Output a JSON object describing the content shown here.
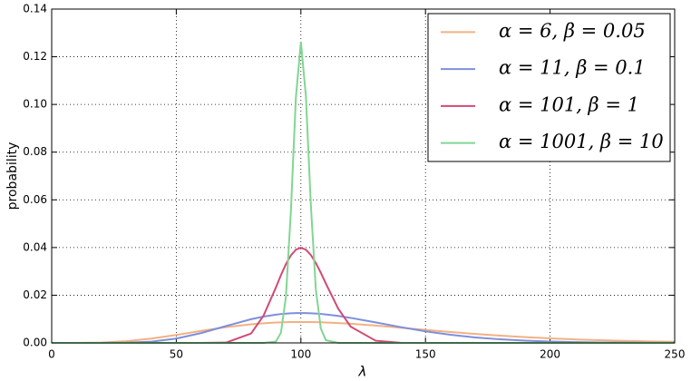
{
  "chart_data": {
    "type": "line",
    "xlabel": "λ",
    "ylabel": "probability",
    "x": [
      0,
      10,
      20,
      30,
      40,
      50,
      60,
      70,
      80,
      85,
      90,
      92,
      94,
      96,
      98,
      100,
      102,
      104,
      106,
      108,
      110,
      115,
      120,
      130,
      140,
      150,
      160,
      170,
      180,
      190,
      200,
      210,
      220,
      230,
      240,
      250
    ],
    "series": [
      {
        "name": "α = 6, β = 0.05",
        "color": "#f2b183",
        "values": [
          0,
          7.9e-06,
          0.000153,
          0.000706,
          0.0018,
          0.00334,
          0.00504,
          0.00661,
          0.00781,
          0.00824,
          0.00854,
          0.00863,
          0.00869,
          0.00874,
          0.00876,
          0.00877,
          0.00877,
          0.00874,
          0.0087,
          0.00864,
          0.00857,
          0.00834,
          0.00803,
          0.00727,
          0.00639,
          0.00547,
          0.00458,
          0.00376,
          0.00304,
          0.00241,
          0.00189,
          0.00146,
          0.00112,
          0.00085,
          0.00064,
          0.00047
        ]
      },
      {
        "name": "α = 11, β = 0.1",
        "color": "#7d8fdc",
        "values": [
          0,
          0,
          3.8e-06,
          8.1e-05,
          0.00053,
          0.00181,
          0.00413,
          0.00709,
          0.00993,
          0.01104,
          0.01186,
          0.0121,
          0.01228,
          0.01242,
          0.01249,
          0.01251,
          0.01249,
          0.01242,
          0.01231,
          0.01215,
          0.01194,
          0.0113,
          0.01048,
          0.00859,
          0.00663,
          0.00486,
          0.00341,
          0.0023,
          0.0015,
          0.00095,
          0.00058,
          0.00035,
          0.0002,
          0.00012,
          6.6e-05,
          3.7e-05
        ]
      },
      {
        "name": "α = 101, β = 1",
        "color": "#d24a75",
        "values": [
          0,
          0,
          0,
          0,
          0,
          0,
          6e-07,
          0.000138,
          0.00394,
          0.0114,
          0.02332,
          0.02843,
          0.03306,
          0.03674,
          0.03909,
          0.0399,
          0.03912,
          0.03688,
          0.03354,
          0.02942,
          0.02494,
          0.01432,
          0.0068,
          0.000925,
          6.9e-05,
          3e-06,
          0,
          0,
          0,
          0,
          0,
          0,
          0,
          0,
          0,
          0
        ]
      },
      {
        "name": "α = 1001, β = 10",
        "color": "#82d593",
        "values": [
          0,
          0,
          0,
          0,
          0,
          0,
          0,
          0,
          0,
          4.6e-07,
          0.00059,
          0.0043,
          0.0194,
          0.0555,
          0.103,
          0.1262,
          0.1036,
          0.0579,
          0.0224,
          0.00605,
          0.00116,
          1e-05,
          0,
          0,
          0,
          0,
          0,
          0,
          0,
          0,
          0,
          0,
          0,
          0,
          0,
          0
        ]
      }
    ],
    "xlim": [
      0,
      250
    ],
    "xticks": [
      0,
      50,
      100,
      150,
      200,
      250
    ],
    "ylim": [
      0,
      0.14
    ],
    "yticks": [
      {
        "value": 0,
        "label": "0.00"
      },
      {
        "value": 0.02,
        "label": "0.02"
      },
      {
        "value": 0.04,
        "label": "0.04"
      },
      {
        "value": 0.06,
        "label": "0.06"
      },
      {
        "value": 0.08,
        "label": "0.08"
      },
      {
        "value": 0.1,
        "label": "0.10"
      },
      {
        "value": 0.12,
        "label": "0.12"
      },
      {
        "value": 0.14,
        "label": "0.14"
      }
    ],
    "grid": true,
    "legend": "upper right"
  }
}
